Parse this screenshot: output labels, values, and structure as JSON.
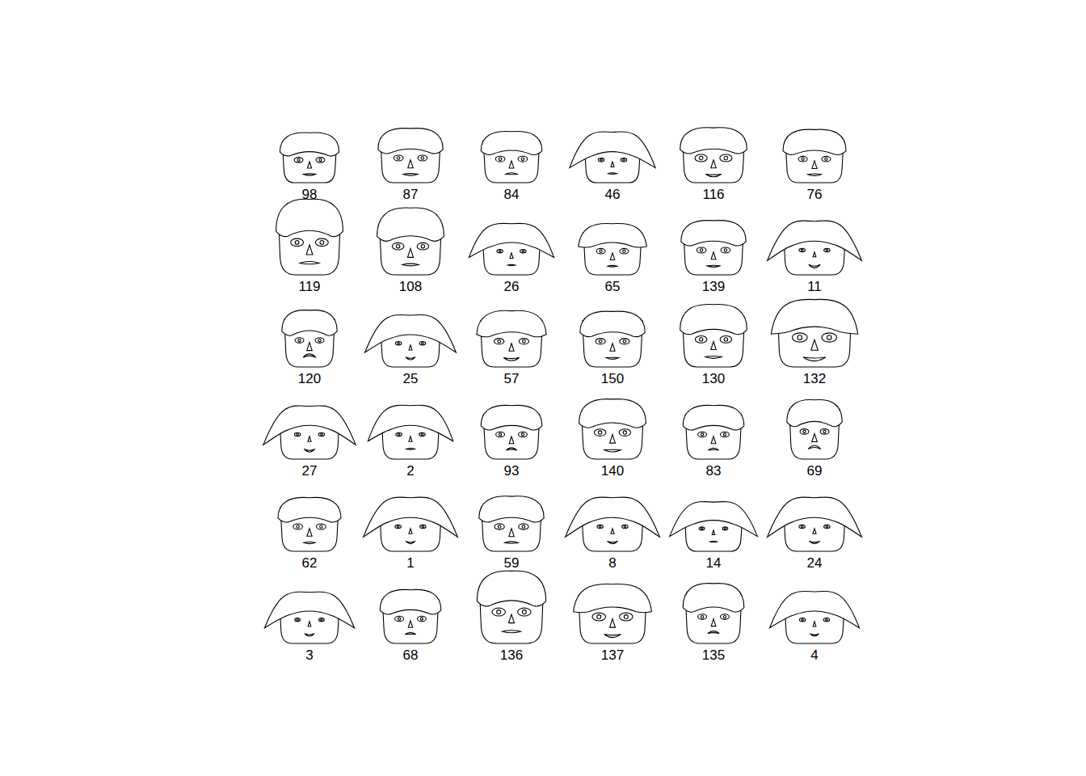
{
  "chart_data": {
    "type": "faces",
    "faces": [
      {
        "label": "98",
        "head_width": 0.4,
        "head_height": 0.35,
        "hair_height": 0.35,
        "hair_flare": 0,
        "eye_size": 0.35,
        "nose_size": 0.3,
        "mouth_width": 0.4,
        "smile": 0.1
      },
      {
        "label": "87",
        "head_width": 0.55,
        "head_height": 0.45,
        "hair_height": 0.4,
        "hair_flare": 0,
        "eye_size": 0.4,
        "nose_size": 0.5,
        "mouth_width": 0.5,
        "smile": 0.1
      },
      {
        "label": "84",
        "head_width": 0.45,
        "head_height": 0.4,
        "hair_height": 0.3,
        "hair_flare": 0,
        "eye_size": 0.4,
        "nose_size": 0.4,
        "mouth_width": 0.35,
        "smile": -0.2
      },
      {
        "label": "46",
        "head_width": 0.45,
        "head_height": 0.35,
        "hair_height": 0.4,
        "hair_flare": 0.9,
        "eye_size": 0.1,
        "nose_size": 0.15,
        "mouth_width": 0.2,
        "smile": 0
      },
      {
        "label": "116",
        "head_width": 0.6,
        "head_height": 0.45,
        "hair_height": 0.45,
        "hair_flare": 0,
        "eye_size": 0.65,
        "nose_size": 0.5,
        "mouth_width": 0.55,
        "smile": 0.5
      },
      {
        "label": "76",
        "head_width": 0.5,
        "head_height": 0.4,
        "hair_height": 0.45,
        "hair_flare": 0,
        "eye_size": 0.35,
        "nose_size": 0.45,
        "mouth_width": 0.45,
        "smile": 0.1
      },
      {
        "label": "119",
        "head_width": 0.6,
        "head_height": 0.85,
        "hair_height": 0.9,
        "hair_flare": 0,
        "eye_size": 0.7,
        "nose_size": 0.7,
        "mouth_width": 0.75,
        "smile": -0.1
      },
      {
        "label": "108",
        "head_width": 0.6,
        "head_height": 0.65,
        "hair_height": 0.8,
        "hair_flare": 0,
        "eye_size": 0.6,
        "nose_size": 0.6,
        "mouth_width": 0.6,
        "smile": 0
      },
      {
        "label": "26",
        "head_width": 0.5,
        "head_height": 0.4,
        "hair_height": 0.3,
        "hair_flare": 0.8,
        "eye_size": 0.1,
        "nose_size": 0.15,
        "mouth_width": 0.15,
        "smile": 0
      },
      {
        "label": "65",
        "head_width": 0.5,
        "head_height": 0.4,
        "hair_height": 0.3,
        "hair_flare": 0.2,
        "eye_size": 0.35,
        "nose_size": 0.35,
        "mouth_width": 0.25,
        "smile": 0
      },
      {
        "label": "139",
        "head_width": 0.55,
        "head_height": 0.45,
        "hair_height": 0.4,
        "hair_flare": 0,
        "eye_size": 0.4,
        "nose_size": 0.4,
        "mouth_width": 0.4,
        "smile": 0.1
      },
      {
        "label": "11",
        "head_width": 0.6,
        "head_height": 0.45,
        "hair_height": 0.35,
        "hair_flare": 1,
        "eye_size": 0.1,
        "nose_size": 0.1,
        "mouth_width": 0.35,
        "smile": 0.8
      },
      {
        "label": "120",
        "head_width": 0.3,
        "head_height": 0.55,
        "hair_height": 0.3,
        "hair_flare": 0,
        "eye_size": 0.35,
        "nose_size": 0.5,
        "mouth_width": 0.4,
        "smile": -0.8
      },
      {
        "label": "25",
        "head_width": 0.55,
        "head_height": 0.4,
        "hair_height": 0.35,
        "hair_flare": 0.95,
        "eye_size": 0.1,
        "nose_size": 0.1,
        "mouth_width": 0.25,
        "smile": 0.6
      },
      {
        "label": "57",
        "head_width": 0.6,
        "head_height": 0.5,
        "hair_height": 0.4,
        "hair_flare": 0.1,
        "eye_size": 0.45,
        "nose_size": 0.45,
        "mouth_width": 0.55,
        "smile": 0.6
      },
      {
        "label": "150",
        "head_width": 0.55,
        "head_height": 0.5,
        "hair_height": 0.35,
        "hair_flare": 0,
        "eye_size": 0.45,
        "nose_size": 0.45,
        "mouth_width": 0.4,
        "smile": 0.2
      },
      {
        "label": "130",
        "head_width": 0.6,
        "head_height": 0.6,
        "hair_height": 0.6,
        "hair_flare": 0,
        "eye_size": 0.6,
        "nose_size": 0.5,
        "mouth_width": 0.6,
        "smile": 0.1
      },
      {
        "label": "132",
        "head_width": 0.9,
        "head_height": 0.7,
        "hair_height": 0.7,
        "hair_flare": 0.3,
        "eye_size": 0.9,
        "nose_size": 0.8,
        "mouth_width": 0.9,
        "smile": 0.7
      },
      {
        "label": "27",
        "head_width": 0.55,
        "head_height": 0.45,
        "hair_height": 0.3,
        "hair_flare": 1,
        "eye_size": 0.1,
        "nose_size": 0.15,
        "mouth_width": 0.3,
        "smile": 0.7
      },
      {
        "label": "2",
        "head_width": 0.5,
        "head_height": 0.45,
        "hair_height": 0.35,
        "hair_flare": 0.8,
        "eye_size": 0.1,
        "nose_size": 0.15,
        "mouth_width": 0.2,
        "smile": 0
      },
      {
        "label": "93",
        "head_width": 0.45,
        "head_height": 0.45,
        "hair_height": 0.35,
        "hair_flare": 0,
        "eye_size": 0.35,
        "nose_size": 0.4,
        "mouth_width": 0.3,
        "smile": -0.5
      },
      {
        "label": "140",
        "head_width": 0.6,
        "head_height": 0.55,
        "hair_height": 0.55,
        "hair_flare": 0,
        "eye_size": 0.6,
        "nose_size": 0.55,
        "mouth_width": 0.6,
        "smile": 0.3
      },
      {
        "label": "83",
        "head_width": 0.45,
        "head_height": 0.45,
        "hair_height": 0.35,
        "hair_flare": 0,
        "eye_size": 0.35,
        "nose_size": 0.4,
        "mouth_width": 0.3,
        "smile": -0.4
      },
      {
        "label": "69",
        "head_width": 0.3,
        "head_height": 0.6,
        "hair_height": 0.35,
        "hair_flare": 0,
        "eye_size": 0.35,
        "nose_size": 0.5,
        "mouth_width": 0.4,
        "smile": -0.8
      },
      {
        "label": "62",
        "head_width": 0.5,
        "head_height": 0.45,
        "hair_height": 0.35,
        "hair_flare": 0,
        "eye_size": 0.4,
        "nose_size": 0.45,
        "mouth_width": 0.35,
        "smile": 0.1
      },
      {
        "label": "1",
        "head_width": 0.6,
        "head_height": 0.45,
        "hair_height": 0.35,
        "hair_flare": 1,
        "eye_size": 0.1,
        "nose_size": 0.15,
        "mouth_width": 0.25,
        "smile": 0.6
      },
      {
        "label": "59",
        "head_width": 0.55,
        "head_height": 0.45,
        "hair_height": 0.45,
        "hair_flare": 0,
        "eye_size": 0.45,
        "nose_size": 0.5,
        "mouth_width": 0.45,
        "smile": -0.1
      },
      {
        "label": "8",
        "head_width": 0.6,
        "head_height": 0.45,
        "hair_height": 0.35,
        "hair_flare": 1,
        "eye_size": 0.1,
        "nose_size": 0.15,
        "mouth_width": 0.3,
        "smile": 0.6
      },
      {
        "label": "14",
        "head_width": 0.5,
        "head_height": 0.35,
        "hair_height": 0.3,
        "hair_flare": 0.9,
        "eye_size": 0.05,
        "nose_size": 0.05,
        "mouth_width": 0.1,
        "smile": 0
      },
      {
        "label": "24",
        "head_width": 0.6,
        "head_height": 0.45,
        "hair_height": 0.35,
        "hair_flare": 1,
        "eye_size": 0.1,
        "nose_size": 0.15,
        "mouth_width": 0.3,
        "smile": 0.6
      },
      {
        "label": "3",
        "head_width": 0.55,
        "head_height": 0.4,
        "hair_height": 0.3,
        "hair_flare": 0.9,
        "eye_size": 0.05,
        "nose_size": 0.1,
        "mouth_width": 0.25,
        "smile": 0.6
      },
      {
        "label": "68",
        "head_width": 0.45,
        "head_height": 0.45,
        "hair_height": 0.35,
        "hair_flare": 0,
        "eye_size": 0.35,
        "nose_size": 0.35,
        "mouth_width": 0.3,
        "smile": -0.3
      },
      {
        "label": "136",
        "head_width": 0.65,
        "head_height": 0.8,
        "hair_height": 0.8,
        "hair_flare": 0,
        "eye_size": 0.75,
        "nose_size": 0.55,
        "mouth_width": 0.7,
        "smile": 0
      },
      {
        "label": "137",
        "head_width": 0.75,
        "head_height": 0.55,
        "hair_height": 0.5,
        "hair_flare": 0.2,
        "eye_size": 0.75,
        "nose_size": 0.55,
        "mouth_width": 0.6,
        "smile": 0.7
      },
      {
        "label": "135",
        "head_width": 0.45,
        "head_height": 0.55,
        "hair_height": 0.55,
        "hair_flare": 0,
        "eye_size": 0.35,
        "nose_size": 0.4,
        "mouth_width": 0.35,
        "smile": -0.5
      },
      {
        "label": "4",
        "head_width": 0.55,
        "head_height": 0.4,
        "hair_height": 0.35,
        "hair_flare": 0.9,
        "eye_size": 0.1,
        "nose_size": 0.1,
        "mouth_width": 0.2,
        "smile": 0.6
      }
    ]
  }
}
